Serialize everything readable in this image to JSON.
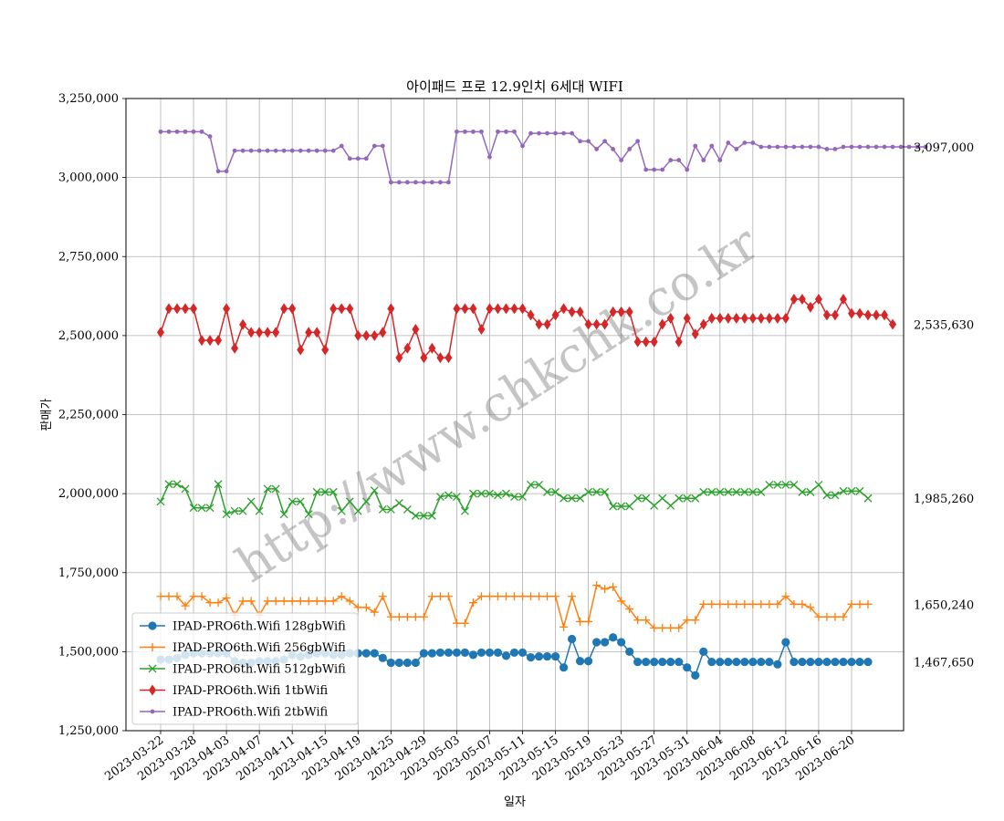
{
  "chart_data": {
    "type": "line",
    "title": "아이패드 프로 12.9인치 6세대 WIFI",
    "xlabel": "일자",
    "ylabel": "판매가",
    "ylim": [
      1250000,
      3250000
    ],
    "yticks": [
      "1,250,000",
      "1,500,000",
      "1,750,000",
      "2,000,000",
      "2,250,000",
      "2,500,000",
      "2,750,000",
      "3,000,000",
      "3,250,000"
    ],
    "yticks_values": [
      1250000,
      1500000,
      1750000,
      2000000,
      2250000,
      2500000,
      2750000,
      3000000,
      3250000
    ],
    "xticks": [
      "2023-03-22",
      "2023-03-28",
      "2023-04-03",
      "2023-04-07",
      "2023-04-11",
      "2023-04-15",
      "2023-04-19",
      "2023-04-25",
      "2023-04-29",
      "2023-05-03",
      "2023-05-07",
      "2023-05-11",
      "2023-05-15",
      "2023-05-19",
      "2023-05-23",
      "2023-05-27",
      "2023-05-31",
      "2023-06-04",
      "2023-06-08",
      "2023-06-12",
      "2023-06-16",
      "2023-06-20"
    ],
    "xticks_index": [
      0,
      4,
      8,
      12,
      16,
      20,
      24,
      28,
      32,
      36,
      40,
      44,
      48,
      52,
      56,
      60,
      64,
      68,
      72,
      76,
      80,
      84
    ],
    "right_labels": [
      "3,097,000",
      "2,535,630",
      "1,985,260",
      "1,650,240",
      "1,467,650"
    ],
    "grid": true,
    "legend_position": "lower-left",
    "watermark": "http://www.chkchk.co.kr",
    "series": [
      {
        "name": "IPAD-PRO6th.Wifi 128gbWifi",
        "color": "#1f77b4",
        "marker": "circle",
        "values": [
          1475000,
          1475000,
          1480000,
          1490000,
          1495000,
          1495000,
          1495000,
          1495000,
          1495000,
          1470000,
          1465000,
          1465000,
          1470000,
          1470000,
          1470000,
          1475000,
          1490000,
          1485000,
          1490000,
          1495000,
          1495000,
          1490000,
          1490000,
          1495000,
          1495000,
          1495000,
          1495000,
          1480000,
          1465000,
          1465000,
          1465000,
          1465000,
          1495000,
          1495000,
          1497000,
          1497000,
          1497000,
          1497000,
          1490000,
          1497000,
          1497000,
          1497000,
          1487000,
          1497000,
          1497000,
          1482000,
          1485000,
          1485000,
          1485000,
          1450000,
          1540000,
          1470000,
          1470000,
          1530000,
          1530000,
          1545000,
          1530000,
          1500000,
          1467650,
          1467650,
          1467650,
          1467650,
          1467650,
          1467650,
          1450000,
          1425000,
          1500000,
          1467650,
          1467650,
          1467650,
          1467650,
          1467650,
          1467650,
          1467650,
          1467650,
          1460000,
          1530000,
          1467650,
          1467650,
          1467650,
          1467650,
          1467650,
          1467650,
          1467650,
          1467650,
          1467650,
          1467650
        ]
      },
      {
        "name": "IPAD-PRO6th.Wifi 256gbWifi",
        "color": "#ff7f0e",
        "marker": "plus",
        "values": [
          1675000,
          1675000,
          1675000,
          1645000,
          1675000,
          1675000,
          1655000,
          1655000,
          1670000,
          1615000,
          1660000,
          1660000,
          1615000,
          1660000,
          1660000,
          1660000,
          1660000,
          1660000,
          1660000,
          1660000,
          1660000,
          1660000,
          1675000,
          1660000,
          1640000,
          1640000,
          1625000,
          1675000,
          1610000,
          1610000,
          1610000,
          1610000,
          1610000,
          1675000,
          1675000,
          1675000,
          1590000,
          1590000,
          1655000,
          1675000,
          1675000,
          1675000,
          1675000,
          1675000,
          1675000,
          1675000,
          1675000,
          1675000,
          1675000,
          1578000,
          1675000,
          1595000,
          1595000,
          1710000,
          1698000,
          1705000,
          1660000,
          1635000,
          1600000,
          1600000,
          1575000,
          1575000,
          1575000,
          1575000,
          1600000,
          1600000,
          1650240,
          1650240,
          1650240,
          1650240,
          1650240,
          1650240,
          1650240,
          1650240,
          1650240,
          1650240,
          1675000,
          1650240,
          1650240,
          1640000,
          1610000,
          1610000,
          1610000,
          1610000,
          1650240,
          1650240,
          1650240
        ]
      },
      {
        "name": "IPAD-PRO6th.Wifi 512gbWifi",
        "color": "#2ca02c",
        "marker": "x",
        "values": [
          1975000,
          2030000,
          2030000,
          2015000,
          1955000,
          1955000,
          1955000,
          2030000,
          1935000,
          1945000,
          1945000,
          1975000,
          1945000,
          2015000,
          2015000,
          1935000,
          1975000,
          1975000,
          1935000,
          2005000,
          2005000,
          2005000,
          1945000,
          1975000,
          1945000,
          1975000,
          2010000,
          1950000,
          1950000,
          1970000,
          1950000,
          1930000,
          1930000,
          1930000,
          1990000,
          1995000,
          1990000,
          1945000,
          2000000,
          2000000,
          2000000,
          1995000,
          2000000,
          1990000,
          1990000,
          2028000,
          2028000,
          2005000,
          2005000,
          1985260,
          1985260,
          1985260,
          2005000,
          2005000,
          2005000,
          1960000,
          1960000,
          1960000,
          1985260,
          1985260,
          1962000,
          1985260,
          1962000,
          1985260,
          1985260,
          1985260,
          2005000,
          2005000,
          2005000,
          2005000,
          2005000,
          2005000,
          2005000,
          2005000,
          2028000,
          2028000,
          2028000,
          2028000,
          2005000,
          2005000,
          2028000,
          1995000,
          1995000,
          2008000,
          2008000,
          2008000,
          1985260
        ]
      },
      {
        "name": "IPAD-PRO6th.Wifi 1tbWifi",
        "color": "#d62728",
        "marker": "diamond",
        "values": [
          2510000,
          2585000,
          2585000,
          2585000,
          2585000,
          2485000,
          2485000,
          2485000,
          2585000,
          2460000,
          2535000,
          2510000,
          2510000,
          2510000,
          2510000,
          2585000,
          2585000,
          2455000,
          2510000,
          2510000,
          2455000,
          2585000,
          2585000,
          2585000,
          2500000,
          2500000,
          2500000,
          2510000,
          2585000,
          2430000,
          2460000,
          2520000,
          2430000,
          2460000,
          2430000,
          2430000,
          2585000,
          2585000,
          2585000,
          2520000,
          2585000,
          2585000,
          2585000,
          2585000,
          2585000,
          2565000,
          2535630,
          2535630,
          2565000,
          2585000,
          2575000,
          2575000,
          2535630,
          2535630,
          2535630,
          2575000,
          2575000,
          2575000,
          2480000,
          2480000,
          2480000,
          2535630,
          2555000,
          2480000,
          2555000,
          2505000,
          2535630,
          2555000,
          2555000,
          2555000,
          2555000,
          2555000,
          2555000,
          2555000,
          2555000,
          2555000,
          2555000,
          2615000,
          2615000,
          2590000,
          2615000,
          2565000,
          2565000,
          2615000,
          2570000,
          2570000,
          2565000,
          2565000,
          2565000,
          2535630
        ]
      },
      {
        "name": "IPAD-PRO6th.Wifi 2tbWifi",
        "color": "#9467bd",
        "marker": "dot",
        "values": [
          3145000,
          3145000,
          3145000,
          3145000,
          3145000,
          3145000,
          3130000,
          3020000,
          3020000,
          3085000,
          3085000,
          3085000,
          3085000,
          3085000,
          3085000,
          3085000,
          3085000,
          3085000,
          3085000,
          3085000,
          3085000,
          3085000,
          3100000,
          3060000,
          3060000,
          3060000,
          3100000,
          3100000,
          2985000,
          2985000,
          2985000,
          2985000,
          2985000,
          2985000,
          2985000,
          2985000,
          3145000,
          3145000,
          3145000,
          3145000,
          3065000,
          3145000,
          3145000,
          3145000,
          3100000,
          3140000,
          3140000,
          3140000,
          3140000,
          3140000,
          3140000,
          3115000,
          3115000,
          3090000,
          3115000,
          3090000,
          3055000,
          3090000,
          3115000,
          3025000,
          3025000,
          3025000,
          3055000,
          3055000,
          3025000,
          3100000,
          3055000,
          3100000,
          3055000,
          3110000,
          3090000,
          3110000,
          3110000,
          3097000,
          3097000,
          3097000,
          3097000,
          3097000,
          3097000,
          3097000,
          3097000,
          3090000,
          3090000,
          3097000,
          3097000,
          3097000,
          3097000,
          3097000,
          3097000,
          3097000,
          3097000,
          3097000,
          3097000,
          3097000
        ]
      }
    ]
  }
}
